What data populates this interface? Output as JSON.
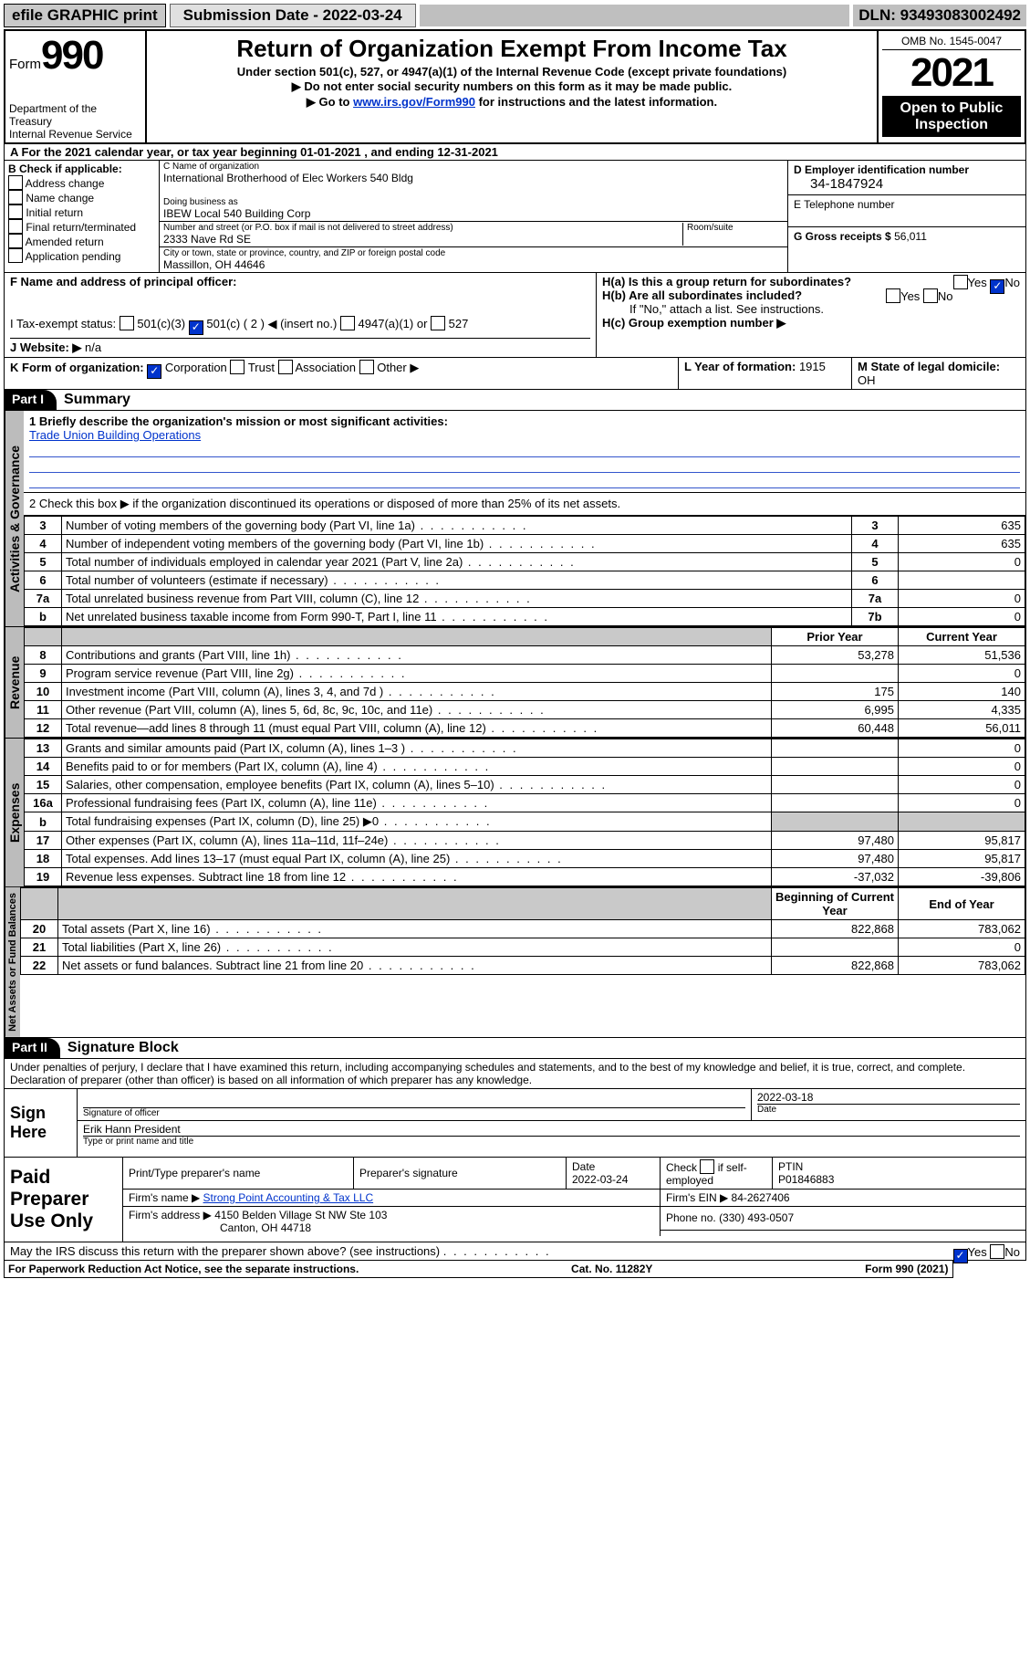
{
  "topbar": {
    "efile": "efile GRAPHIC print",
    "submission_lbl": "Submission Date -",
    "submission_date": "2022-03-24",
    "dln_lbl": "DLN:",
    "dln": "93493083002492"
  },
  "header": {
    "form": "Form",
    "form_num": "990",
    "dept": "Department of the Treasury",
    "irs": "Internal Revenue Service",
    "title": "Return of Organization Exempt From Income Tax",
    "sub1": "Under section 501(c), 527, or 4947(a)(1) of the Internal Revenue Code (except private foundations)",
    "sub2": "▶ Do not enter social security numbers on this form as it may be made public.",
    "sub3_pre": "▶ Go to ",
    "sub3_link": "www.irs.gov/Form990",
    "sub3_post": " for instructions and the latest information.",
    "omb": "OMB No. 1545-0047",
    "year": "2021",
    "inspect": "Open to Public Inspection"
  },
  "rowA": {
    "text": "A For the 2021 calendar year, or tax year beginning 01-01-2021   , and ending 12-31-2021"
  },
  "colB": {
    "hdr": "B Check if applicable:",
    "items": [
      "Address change",
      "Name change",
      "Initial return",
      "Final return/terminated",
      "Amended return",
      "Application pending"
    ]
  },
  "colC": {
    "name_lbl": "C Name of organization",
    "name": "International Brotherhood of Elec Workers 540 Bldg",
    "dba_lbl": "Doing business as",
    "dba": "IBEW Local 540 Building Corp",
    "addr_lbl": "Number and street (or P.O. box if mail is not delivered to street address)",
    "room_lbl": "Room/suite",
    "addr": "2333 Nave Rd SE",
    "city_lbl": "City or town, state or province, country, and ZIP or foreign postal code",
    "city": "Massillon, OH  44646"
  },
  "colD": {
    "ein_lbl": "D Employer identification number",
    "ein": "34-1847924",
    "tel_lbl": "E Telephone number",
    "tel": "",
    "gross_lbl": "G Gross receipts $",
    "gross": "56,011"
  },
  "rowF": {
    "f_lbl": "F  Name and address of principal officer:",
    "ha": "H(a)  Is this a group return for subordinates?",
    "hb": "H(b)  Are all subordinates included?",
    "hb_note": "If \"No,\" attach a list. See instructions.",
    "hc": "H(c)  Group exemption number ▶",
    "tax_lbl": "I   Tax-exempt status:",
    "tax_opts": [
      "501(c)(3)",
      "501(c) ( 2 ) ◀ (insert no.)",
      "4947(a)(1) or",
      "527"
    ],
    "website_lbl": "J   Website: ▶",
    "website": "n/a"
  },
  "rowK": {
    "k": "K Form of organization:",
    "opts": [
      "Corporation",
      "Trust",
      "Association",
      "Other ▶"
    ],
    "l": "L Year of formation:",
    "l_val": "1915",
    "m": "M State of legal domicile:",
    "m_val": "OH"
  },
  "part1": {
    "hdr": "Part I",
    "title": "Summary"
  },
  "summary": {
    "q1": "1   Briefly describe the organization's mission or most significant activities:",
    "mission": "Trade Union Building Operations",
    "q2": "2    Check this box ▶      if the organization discontinued its operations or disposed of more than 25% of its net assets.",
    "rows_ag": [
      {
        "n": "3",
        "t": "Number of voting members of the governing body (Part VI, line 1a)",
        "box": "3",
        "v": "635"
      },
      {
        "n": "4",
        "t": "Number of independent voting members of the governing body (Part VI, line 1b)",
        "box": "4",
        "v": "635"
      },
      {
        "n": "5",
        "t": "Total number of individuals employed in calendar year 2021 (Part V, line 2a)",
        "box": "5",
        "v": "0"
      },
      {
        "n": "6",
        "t": "Total number of volunteers (estimate if necessary)",
        "box": "6",
        "v": ""
      },
      {
        "n": "7a",
        "t": "Total unrelated business revenue from Part VIII, column (C), line 12",
        "box": "7a",
        "v": "0"
      },
      {
        "n": "b",
        "t": "Net unrelated business taxable income from Form 990-T, Part I, line 11",
        "box": "7b",
        "v": "0"
      }
    ],
    "col_prior": "Prior Year",
    "col_current": "Current Year",
    "rows_rev": [
      {
        "n": "8",
        "t": "Contributions and grants (Part VIII, line 1h)",
        "p": "53,278",
        "c": "51,536"
      },
      {
        "n": "9",
        "t": "Program service revenue (Part VIII, line 2g)",
        "p": "",
        "c": "0"
      },
      {
        "n": "10",
        "t": "Investment income (Part VIII, column (A), lines 3, 4, and 7d )",
        "p": "175",
        "c": "140"
      },
      {
        "n": "11",
        "t": "Other revenue (Part VIII, column (A), lines 5, 6d, 8c, 9c, 10c, and 11e)",
        "p": "6,995",
        "c": "4,335"
      },
      {
        "n": "12",
        "t": "Total revenue—add lines 8 through 11 (must equal Part VIII, column (A), line 12)",
        "p": "60,448",
        "c": "56,011"
      }
    ],
    "rows_exp": [
      {
        "n": "13",
        "t": "Grants and similar amounts paid (Part IX, column (A), lines 1–3 )",
        "p": "",
        "c": "0"
      },
      {
        "n": "14",
        "t": "Benefits paid to or for members (Part IX, column (A), line 4)",
        "p": "",
        "c": "0"
      },
      {
        "n": "15",
        "t": "Salaries, other compensation, employee benefits (Part IX, column (A), lines 5–10)",
        "p": "",
        "c": "0"
      },
      {
        "n": "16a",
        "t": "Professional fundraising fees (Part IX, column (A), line 11e)",
        "p": "",
        "c": "0"
      },
      {
        "n": "b",
        "t": "Total fundraising expenses (Part IX, column (D), line 25) ▶0",
        "p": "shade",
        "c": "shade"
      },
      {
        "n": "17",
        "t": "Other expenses (Part IX, column (A), lines 11a–11d, 11f–24e)",
        "p": "97,480",
        "c": "95,817"
      },
      {
        "n": "18",
        "t": "Total expenses. Add lines 13–17 (must equal Part IX, column (A), line 25)",
        "p": "97,480",
        "c": "95,817"
      },
      {
        "n": "19",
        "t": "Revenue less expenses. Subtract line 18 from line 12",
        "p": "-37,032",
        "c": "-39,806"
      }
    ],
    "col_begin": "Beginning of Current Year",
    "col_end": "End of Year",
    "rows_net": [
      {
        "n": "20",
        "t": "Total assets (Part X, line 16)",
        "p": "822,868",
        "c": "783,062"
      },
      {
        "n": "21",
        "t": "Total liabilities (Part X, line 26)",
        "p": "",
        "c": "0"
      },
      {
        "n": "22",
        "t": "Net assets or fund balances. Subtract line 21 from line 20",
        "p": "822,868",
        "c": "783,062"
      }
    ]
  },
  "vtabs": {
    "ag": "Activities & Governance",
    "rev": "Revenue",
    "exp": "Expenses",
    "net": "Net Assets or Fund Balances"
  },
  "part2": {
    "hdr": "Part II",
    "title": "Signature Block",
    "decl": "Under penalties of perjury, I declare that I have examined this return, including accompanying schedules and statements, and to the best of my knowledge and belief, it is true, correct, and complete. Declaration of preparer (other than officer) is based on all information of which preparer has any knowledge."
  },
  "sign": {
    "here": "Sign Here",
    "sig_lbl": "Signature of officer",
    "date": "2022-03-18",
    "date_lbl": "Date",
    "name": "Erik Hann President",
    "name_lbl": "Type or print name and title"
  },
  "prep": {
    "hdr": "Paid Preparer Use Only",
    "c1": "Print/Type preparer's name",
    "c2": "Preparer's signature",
    "c3": "Date",
    "c3v": "2022-03-24",
    "c4": "Check        if self-employed",
    "c5": "PTIN",
    "c5v": "P01846883",
    "firm_lbl": "Firm's name    ▶",
    "firm": "Strong Point Accounting & Tax LLC",
    "ein_lbl": "Firm's EIN ▶",
    "ein": "84-2627406",
    "addr_lbl": "Firm's address ▶",
    "addr1": "4150 Belden Village St NW Ste 103",
    "addr2": "Canton, OH  44718",
    "phone_lbl": "Phone no.",
    "phone": "(330) 493-0507"
  },
  "footer": {
    "q": "May the IRS discuss this return with the preparer shown above? (see instructions)",
    "notice": "For Paperwork Reduction Act Notice, see the separate instructions.",
    "cat": "Cat. No. 11282Y",
    "form": "Form 990 (2021)"
  }
}
